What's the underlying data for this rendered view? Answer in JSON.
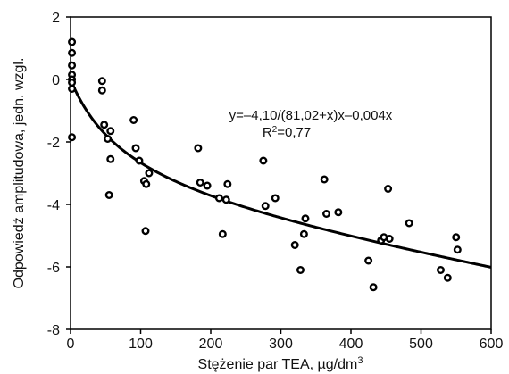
{
  "chart_data": {
    "type": "scatter",
    "xlabel": "Stężenie par TEA, µg/dm³",
    "ylabel": "Odpowiedź amplitudowa, jedn. wzgl.",
    "xlim": [
      0,
      600
    ],
    "ylim": [
      -8,
      2
    ],
    "xticks": [
      "0",
      "100",
      "200",
      "300",
      "400",
      "500",
      "600"
    ],
    "yticks": [
      "2",
      "0",
      "-2",
      "-4",
      "-6",
      "-8"
    ],
    "grid": false,
    "annotations": {
      "equation": "y=–4,10/(81,02+x)x–0,004x",
      "r2": "R²=0,77"
    },
    "points": [
      {
        "x": 2,
        "y": 1.2
      },
      {
        "x": 2,
        "y": 0.85
      },
      {
        "x": 2,
        "y": 0.45
      },
      {
        "x": 2,
        "y": 0.15
      },
      {
        "x": 2,
        "y": 0.0
      },
      {
        "x": 2,
        "y": -0.1
      },
      {
        "x": 2,
        "y": -0.3
      },
      {
        "x": 2,
        "y": -1.85
      },
      {
        "x": 45,
        "y": -0.05
      },
      {
        "x": 45,
        "y": -0.35
      },
      {
        "x": 48,
        "y": -1.45
      },
      {
        "x": 53,
        "y": -1.9
      },
      {
        "x": 57,
        "y": -1.65
      },
      {
        "x": 57,
        "y": -2.55
      },
      {
        "x": 55,
        "y": -3.7
      },
      {
        "x": 90,
        "y": -1.3
      },
      {
        "x": 93,
        "y": -2.2
      },
      {
        "x": 98,
        "y": -2.6
      },
      {
        "x": 105,
        "y": -3.25
      },
      {
        "x": 108,
        "y": -3.35
      },
      {
        "x": 112,
        "y": -3.0
      },
      {
        "x": 107,
        "y": -4.85
      },
      {
        "x": 182,
        "y": -2.2
      },
      {
        "x": 185,
        "y": -3.3
      },
      {
        "x": 195,
        "y": -3.4
      },
      {
        "x": 212,
        "y": -3.8
      },
      {
        "x": 217,
        "y": -4.95
      },
      {
        "x": 222,
        "y": -3.85
      },
      {
        "x": 224,
        "y": -3.35
      },
      {
        "x": 275,
        "y": -2.6
      },
      {
        "x": 278,
        "y": -4.05
      },
      {
        "x": 292,
        "y": -3.8
      },
      {
        "x": 320,
        "y": -5.3
      },
      {
        "x": 328,
        "y": -6.1
      },
      {
        "x": 333,
        "y": -4.95
      },
      {
        "x": 335,
        "y": -4.45
      },
      {
        "x": 362,
        "y": -3.2
      },
      {
        "x": 365,
        "y": -4.3
      },
      {
        "x": 382,
        "y": -4.25
      },
      {
        "x": 425,
        "y": -5.8
      },
      {
        "x": 432,
        "y": -6.65
      },
      {
        "x": 443,
        "y": -5.15
      },
      {
        "x": 447,
        "y": -5.05
      },
      {
        "x": 453,
        "y": -3.5
      },
      {
        "x": 455,
        "y": -5.1
      },
      {
        "x": 483,
        "y": -4.6
      },
      {
        "x": 528,
        "y": -6.1
      },
      {
        "x": 538,
        "y": -6.35
      },
      {
        "x": 550,
        "y": -5.05
      },
      {
        "x": 552,
        "y": -5.45
      }
    ],
    "fit_curve": {
      "a": -4.1,
      "b": 81.02,
      "c": -0.004,
      "x_start": 0,
      "x_end": 600
    },
    "colors": {
      "marker_stroke": "#000000",
      "curve": "#000000",
      "axis": "#000000"
    }
  }
}
